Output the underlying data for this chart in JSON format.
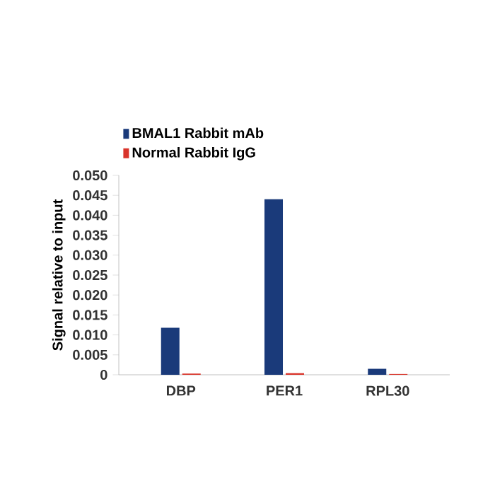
{
  "chart_data": {
    "type": "bar",
    "ylabel": "Signal relative to input",
    "categories": [
      "DBP",
      "PER1",
      "RPL30"
    ],
    "series": [
      {
        "name": "BMAL1 Rabbit mAb",
        "color": "#1a3a7a",
        "values": [
          0.0118,
          0.044,
          0.0015
        ]
      },
      {
        "name": "Normal Rabbit IgG",
        "color": "#d9342b",
        "values": [
          0.0003,
          0.0004,
          0.0002
        ]
      }
    ],
    "ylim": [
      0,
      0.05
    ],
    "yticks": [
      {
        "value": 0,
        "label": "0"
      },
      {
        "value": 0.005,
        "label": "0.005"
      },
      {
        "value": 0.01,
        "label": "0.010"
      },
      {
        "value": 0.015,
        "label": "0.015"
      },
      {
        "value": 0.02,
        "label": "0.020"
      },
      {
        "value": 0.025,
        "label": "0.025"
      },
      {
        "value": 0.03,
        "label": "0.030"
      },
      {
        "value": 0.035,
        "label": "0.035"
      },
      {
        "value": 0.04,
        "label": "0.040"
      },
      {
        "value": 0.045,
        "label": "0.045"
      },
      {
        "value": 0.05,
        "label": "0.050"
      }
    ],
    "grid": false,
    "legend": "top"
  }
}
